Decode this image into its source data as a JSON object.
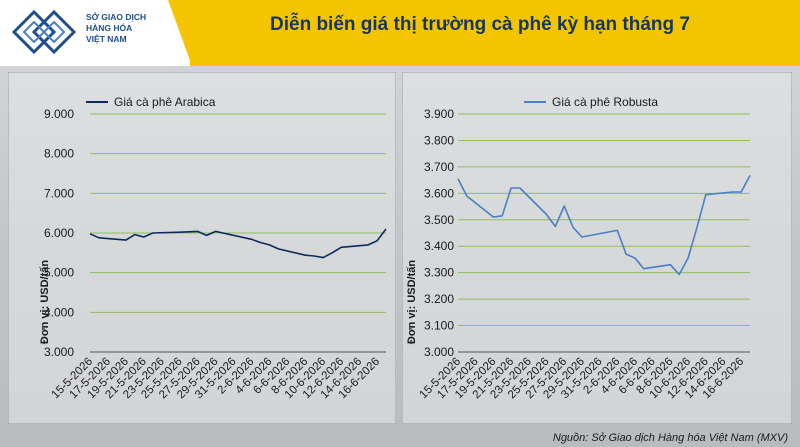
{
  "logo": {
    "line1": "SỞ GIAO DỊCH",
    "line2": "HÀNG HÓA",
    "line3": "VIỆT NAM"
  },
  "title": "Diễn biến giá thị trường cà phê kỳ hạn tháng 7",
  "source": "Nguồn: Sở Giao dịch Hàng hóa Việt Nam (MXV)",
  "colors": {
    "title_bar": "#f5c400",
    "arabica_line": "#0e2a5c",
    "robusta_line": "#4a7fc8",
    "gridline": "#8fbf5a",
    "logo_blue": "#1f4e8c"
  },
  "chart_data": [
    {
      "type": "line",
      "title": "",
      "xlabel": "",
      "ylabel": "Đơn vị: USD/tấn",
      "ylim": [
        3000,
        9000
      ],
      "yticks": [
        3000,
        4000,
        5000,
        6000,
        7000,
        8000,
        9000
      ],
      "ytick_labels": [
        "3.000",
        "4.000",
        "5.000",
        "6.000",
        "7.000",
        "8.000",
        "9.000"
      ],
      "xtick_labels": [
        "15-5-2026",
        "17-5-2026",
        "19-5-2026",
        "21-5-2026",
        "23-5-2026",
        "25-5-2026",
        "27-5-2026",
        "29-5-2026",
        "31-5-2026",
        "2-6-2026",
        "4-6-2026",
        "6-6-2026",
        "8-6-2026",
        "10-6-2026",
        "12-6-2026",
        "14-6-2026",
        "16-6-2026"
      ],
      "legend": "top-left",
      "grid": true,
      "series": [
        {
          "name": "Giá cà phê Arabica",
          "x": [
            "15-5-2026",
            "16-5-2026",
            "19-5-2026",
            "20-5-2026",
            "21-5-2026",
            "22-5-2026",
            "25-5-2026",
            "26-5-2026",
            "27-5-2026",
            "28-5-2026",
            "29-5-2026",
            "2-6-2026",
            "3-6-2026",
            "4-6-2026",
            "5-6-2026",
            "8-6-2026",
            "9-6-2026",
            "10-6-2026",
            "11-6-2026",
            "12-6-2026",
            "15-6-2026",
            "16-6-2026",
            "17-6-2026"
          ],
          "values": [
            5980,
            5880,
            5820,
            5960,
            5900,
            6000,
            6020,
            6030,
            6040,
            5940,
            6040,
            5840,
            5760,
            5700,
            5600,
            5440,
            5420,
            5380,
            5500,
            5640,
            5700,
            5800,
            6100
          ]
        }
      ]
    },
    {
      "type": "line",
      "title": "",
      "xlabel": "",
      "ylabel": "Đơn vị: USD/tấn",
      "ylim": [
        3000,
        3900
      ],
      "yticks": [
        3000,
        3100,
        3200,
        3300,
        3400,
        3500,
        3600,
        3700,
        3800,
        3900
      ],
      "ytick_labels": [
        "3.000",
        "3.100",
        "3.200",
        "3.300",
        "3.400",
        "3.500",
        "3.600",
        "3.700",
        "3.800",
        "3.900"
      ],
      "xtick_labels": [
        "15-5-2026",
        "17-5-2026",
        "19-5-2026",
        "21-5-2026",
        "23-5-2026",
        "25-5-2026",
        "27-5-2026",
        "29-5-2026",
        "31-5-2026",
        "2-6-2026",
        "4-6-2026",
        "6-6-2026",
        "8-6-2026",
        "10-6-2026",
        "12-6-2026",
        "14-6-2026",
        "16-6-2026"
      ],
      "legend": "top-left",
      "grid": true,
      "series": [
        {
          "name": "Giá cà phê Robusta",
          "x": [
            "15-5-2026",
            "16-5-2026",
            "19-5-2026",
            "20-5-2026",
            "21-5-2026",
            "22-5-2026",
            "25-5-2026",
            "26-5-2026",
            "27-5-2026",
            "28-5-2026",
            "29-5-2026",
            "2-6-2026",
            "3-6-2026",
            "4-6-2026",
            "5-6-2026",
            "8-6-2026",
            "9-6-2026",
            "10-6-2026",
            "11-6-2026",
            "12-6-2026",
            "15-6-2026",
            "16-6-2026",
            "17-6-2026"
          ],
          "values": [
            3655,
            3590,
            3510,
            3515,
            3620,
            3620,
            3520,
            3475,
            3552,
            3472,
            3435,
            3460,
            3370,
            3355,
            3315,
            3330,
            3293,
            3355,
            3470,
            3595,
            3605,
            3605,
            3668
          ]
        }
      ]
    }
  ]
}
